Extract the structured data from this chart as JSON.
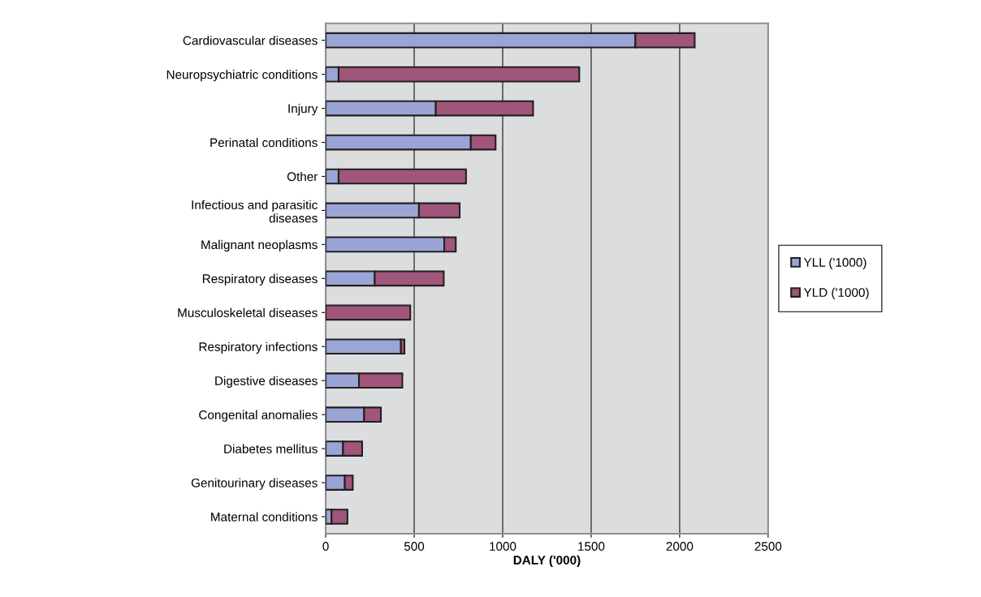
{
  "chart_data": {
    "type": "bar",
    "orientation": "horizontal",
    "stacked": true,
    "xlabel": "DALY ('000)",
    "categories": [
      "Cardiovascular diseases",
      "Neuropsychiatric conditions",
      "Injury",
      "Perinatal conditions",
      "Other",
      "Infectious and parasitic\ndiseases",
      "Malignant neoplasms",
      "Respiratory diseases",
      "Musculoskeletal diseases",
      "Respiratory infections",
      "Digestive diseases",
      "Congenital anomalies",
      "Diabetes mellitus",
      "Genitourinary diseases",
      "Maternal conditions"
    ],
    "series": [
      {
        "name": "YLL ('1000)",
        "color": "#9aa5d6",
        "values": [
          1750,
          73,
          622,
          820,
          73,
          527,
          670,
          277,
          0,
          425,
          188,
          217,
          98,
          108,
          33
        ]
      },
      {
        "name": "YLD ('1000)",
        "color": "#a0557a",
        "values": [
          335,
          1360,
          550,
          140,
          720,
          230,
          65,
          390,
          478,
          20,
          245,
          95,
          108,
          45,
          90
        ]
      }
    ],
    "xlim": [
      0,
      2500
    ],
    "xticks": [
      0,
      500,
      1000,
      1500,
      2000,
      2500
    ],
    "grid": "x",
    "legend": "right"
  }
}
